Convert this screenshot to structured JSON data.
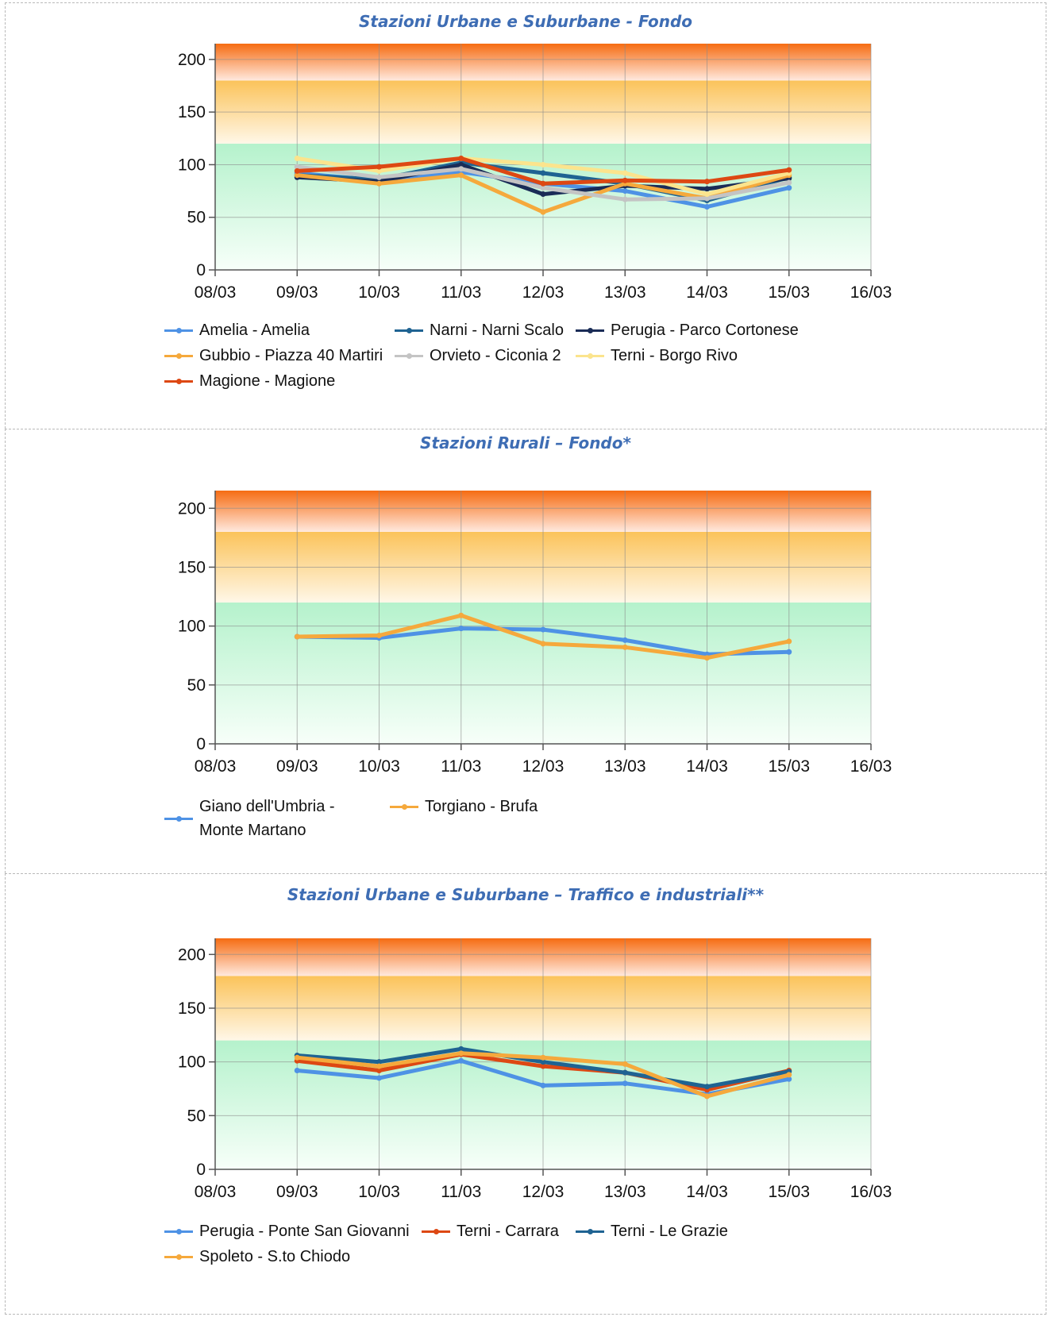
{
  "chart_data": [
    {
      "type": "line",
      "title": "Stazioni Urbane e Suburbane - Fondo",
      "x": [
        "08/03",
        "09/03",
        "10/03",
        "11/03",
        "12/03",
        "13/03",
        "14/03",
        "15/03",
        "16/03"
      ],
      "ylim": [
        0,
        215
      ],
      "yticks": [
        0,
        50,
        100,
        150,
        200
      ],
      "bands": [
        {
          "from": 0,
          "to": 120,
          "color_top": "#b5f2cc",
          "color_bottom": "#f7fff9"
        },
        {
          "from": 120,
          "to": 180,
          "color_top": "#fbc35a",
          "color_bottom": "#fff7e8"
        },
        {
          "from": 180,
          "to": 215,
          "color_top": "#f66c12",
          "color_bottom": "#ffe9de"
        }
      ],
      "grid": true,
      "legend_position": "bottom",
      "series": [
        {
          "name": "Amelia - Amelia",
          "color": "#4e92e5",
          "x": [
            "09/03",
            "10/03",
            "11/03",
            "12/03",
            "13/03",
            "14/03",
            "15/03"
          ],
          "values": [
            92,
            85,
            93,
            82,
            75,
            60,
            78
          ]
        },
        {
          "name": "Narni - Narni Scalo",
          "color": "#1f6392",
          "x": [
            "09/03",
            "10/03",
            "11/03",
            "12/03",
            "13/03",
            "14/03",
            "15/03"
          ],
          "values": [
            90,
            86,
            102,
            92,
            82,
            66,
            88
          ]
        },
        {
          "name": "Perugia - Parco Cortonese",
          "color": "#1a2c57",
          "x": [
            "09/03",
            "10/03",
            "11/03",
            "12/03",
            "13/03",
            "14/03",
            "15/03"
          ],
          "values": [
            88,
            84,
            100,
            72,
            80,
            77,
            87
          ]
        },
        {
          "name": "Gubbio - Piazza 40 Martiri",
          "color": "#f5a93c",
          "x": [
            "09/03",
            "10/03",
            "11/03",
            "12/03",
            "13/03",
            "14/03",
            "15/03"
          ],
          "values": [
            90,
            82,
            90,
            55,
            82,
            68,
            90
          ]
        },
        {
          "name": "Orvieto - Ciconia 2",
          "color": "#c4c4c4",
          "x": [
            "09/03",
            "10/03",
            "11/03",
            "12/03",
            "13/03",
            "14/03",
            "15/03"
          ],
          "values": [
            98,
            88,
            96,
            78,
            67,
            68,
            83
          ]
        },
        {
          "name": "Terni - Borgo Rivo",
          "color": "#fbe48d",
          "x": [
            "09/03",
            "10/03",
            "11/03",
            "12/03",
            "13/03",
            "14/03",
            "15/03"
          ],
          "values": [
            106,
            94,
            106,
            100,
            92,
            72,
            92
          ]
        },
        {
          "name": "Magione - Magione",
          "color": "#dd4813",
          "x": [
            "09/03",
            "10/03",
            "11/03",
            "12/03",
            "13/03",
            "14/03",
            "15/03"
          ],
          "values": [
            94,
            98,
            106,
            82,
            85,
            84,
            95
          ]
        }
      ]
    },
    {
      "type": "line",
      "title": "Stazioni Rurali – Fondo*",
      "x": [
        "08/03",
        "09/03",
        "10/03",
        "11/03",
        "12/03",
        "13/03",
        "14/03",
        "15/03",
        "16/03"
      ],
      "ylim": [
        0,
        215
      ],
      "yticks": [
        0,
        50,
        100,
        150,
        200
      ],
      "bands": [
        {
          "from": 0,
          "to": 120,
          "color_top": "#b5f2cc",
          "color_bottom": "#f7fff9"
        },
        {
          "from": 120,
          "to": 180,
          "color_top": "#fbc35a",
          "color_bottom": "#fff7e8"
        },
        {
          "from": 180,
          "to": 215,
          "color_top": "#f66c12",
          "color_bottom": "#ffe9de"
        }
      ],
      "grid": true,
      "legend_position": "bottom",
      "series": [
        {
          "name": "Giano dell'Umbria - Monte Martano",
          "color": "#4e92e5",
          "x": [
            "09/03",
            "10/03",
            "11/03",
            "12/03",
            "13/03",
            "14/03",
            "15/03"
          ],
          "values": [
            91,
            90,
            98,
            97,
            88,
            76,
            78
          ]
        },
        {
          "name": "Torgiano - Brufa",
          "color": "#f5a93c",
          "x": [
            "09/03",
            "10/03",
            "11/03",
            "12/03",
            "13/03",
            "14/03",
            "15/03"
          ],
          "values": [
            91,
            92,
            109,
            85,
            82,
            73,
            87
          ]
        }
      ]
    },
    {
      "type": "line",
      "title": "Stazioni Urbane e Suburbane – Traffico e industriali**",
      "x": [
        "08/03",
        "09/03",
        "10/03",
        "11/03",
        "12/03",
        "13/03",
        "14/03",
        "15/03",
        "16/03"
      ],
      "ylim": [
        0,
        215
      ],
      "yticks": [
        0,
        50,
        100,
        150,
        200
      ],
      "bands": [
        {
          "from": 0,
          "to": 120,
          "color_top": "#b5f2cc",
          "color_bottom": "#f7fff9"
        },
        {
          "from": 120,
          "to": 180,
          "color_top": "#fbc35a",
          "color_bottom": "#fff7e8"
        },
        {
          "from": 180,
          "to": 215,
          "color_top": "#f66c12",
          "color_bottom": "#ffe9de"
        }
      ],
      "grid": true,
      "legend_position": "bottom",
      "series": [
        {
          "name": "Perugia - Ponte San Giovanni",
          "color": "#4e92e5",
          "x": [
            "09/03",
            "10/03",
            "11/03",
            "12/03",
            "13/03",
            "14/03",
            "15/03"
          ],
          "values": [
            92,
            85,
            101,
            78,
            80,
            70,
            84
          ]
        },
        {
          "name": "Terni - Carrara",
          "color": "#dd4813",
          "x": [
            "09/03",
            "10/03",
            "11/03",
            "12/03",
            "13/03",
            "14/03",
            "15/03"
          ],
          "values": [
            101,
            92,
            107,
            96,
            90,
            74,
            92
          ]
        },
        {
          "name": "Terni - Le Grazie",
          "color": "#1f6392",
          "x": [
            "09/03",
            "10/03",
            "11/03",
            "12/03",
            "13/03",
            "14/03",
            "15/03"
          ],
          "values": [
            106,
            100,
            112,
            100,
            90,
            77,
            91
          ]
        },
        {
          "name": "Spoleto - S.to Chiodo",
          "color": "#f5a93c",
          "x": [
            "09/03",
            "10/03",
            "11/03",
            "12/03",
            "13/03",
            "14/03",
            "15/03"
          ],
          "values": [
            104,
            96,
            108,
            104,
            98,
            68,
            88
          ]
        }
      ]
    }
  ]
}
